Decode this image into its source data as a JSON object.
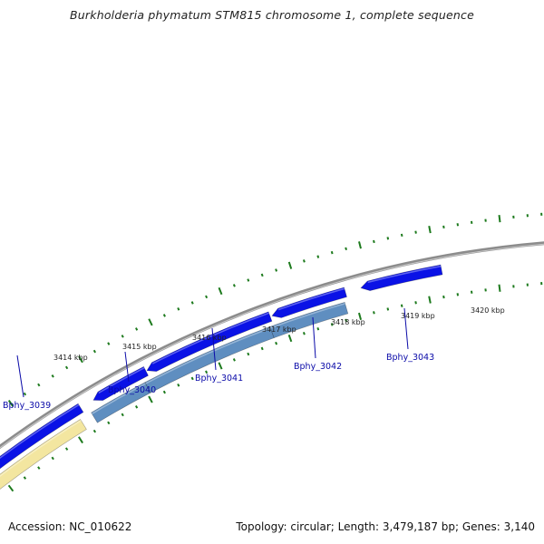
{
  "title": "Burkholderia phymatum STM815 chromosome 1, complete sequence",
  "colors": {
    "backbone": "#8c8c8c",
    "gene_forward": "#0a12e6",
    "gene_reverse": "#0a12e6",
    "cds": "#5f8ec0",
    "cds_partial": "#f3e6a0",
    "tick": "#1d7a1d",
    "label": "#0a0aa8"
  },
  "ruler": [
    {
      "label": "3414 kbp"
    },
    {
      "label": "3415 kbp"
    },
    {
      "label": "3416 kbp"
    },
    {
      "label": "3417 kbp"
    },
    {
      "label": "3418 kbp"
    },
    {
      "label": "3419 kbp"
    },
    {
      "label": "3420 kbp"
    }
  ],
  "genes": [
    {
      "label": "Bphy_3039"
    },
    {
      "label": "Bphy_3040"
    },
    {
      "label": "Bphy_3041"
    },
    {
      "label": "Bphy_3042"
    },
    {
      "label": "Bphy_3043"
    }
  ],
  "footer": {
    "accession": "Accession: NC_010622",
    "topology": "Topology: circular; Length: 3,479,187 bp; Genes: 3,140"
  }
}
